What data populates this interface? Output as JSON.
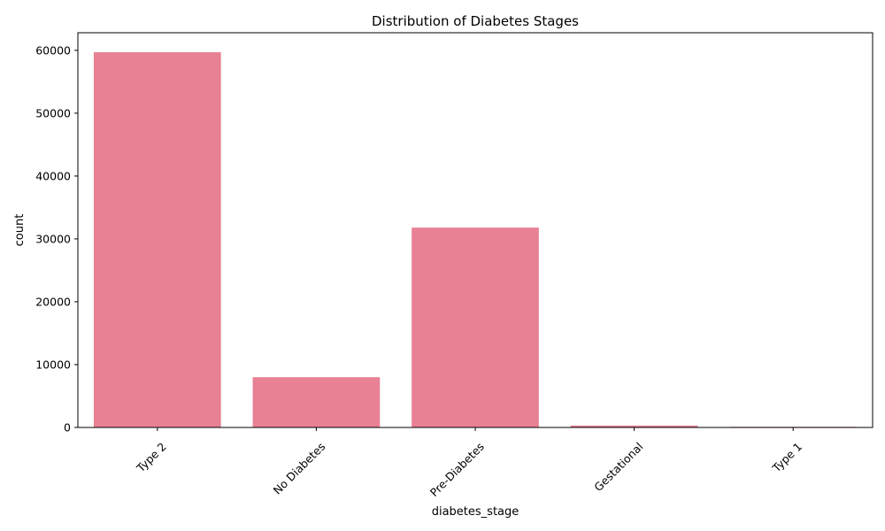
{
  "chart_data": {
    "type": "bar",
    "title": "Distribution of Diabetes Stages",
    "xlabel": "diabetes_stage",
    "ylabel": "count",
    "categories": [
      "Type 2",
      "No Diabetes",
      "Pre-Diabetes",
      "Gestational",
      "Type 1"
    ],
    "values": [
      59700,
      8000,
      31800,
      300,
      100
    ],
    "ylim": [
      0,
      62800
    ],
    "yticks": [
      0,
      10000,
      20000,
      30000,
      40000,
      50000,
      60000
    ],
    "ytick_labels": [
      "0",
      "10000",
      "20000",
      "30000",
      "40000",
      "50000",
      "60000"
    ],
    "xtick_rotation": 45,
    "grid": false,
    "legend": "none",
    "bar_color": "#e88193"
  }
}
